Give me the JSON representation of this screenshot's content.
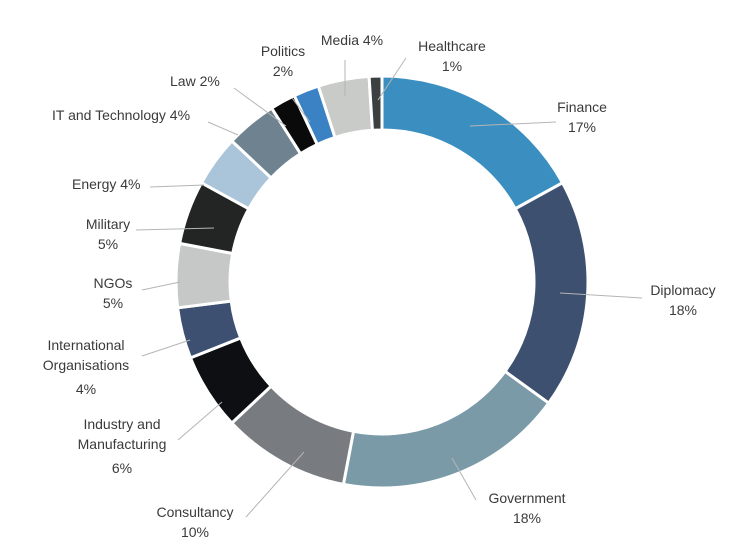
{
  "chart_data": {
    "type": "donut",
    "title": "",
    "slices": [
      {
        "name": "Finance",
        "value_label": "17%",
        "value": 17,
        "color": "#3a8fc0"
      },
      {
        "name": "Diplomacy",
        "value_label": "18%",
        "value": 18,
        "color": "#3d5070"
      },
      {
        "name": "Government",
        "value_label": "18%",
        "value": 18,
        "color": "#7a9aa8"
      },
      {
        "name": "Consultancy",
        "value_label": "10%",
        "value": 10,
        "color": "#787c80"
      },
      {
        "name": "Industry and Manufacturing",
        "value_label": "6%",
        "value": 6,
        "color": "#0d0f12"
      },
      {
        "name": "International Organisations",
        "value_label": "4%",
        "value": 4,
        "color": "#3e5072"
      },
      {
        "name": "NGOs",
        "value_label": "5%",
        "value": 5,
        "color": "#c5c8c6"
      },
      {
        "name": "Military",
        "value_label": "5%",
        "value": 5,
        "color": "#232525"
      },
      {
        "name": "Energy",
        "value_label": "4%",
        "value": 4,
        "color": "#aac4da"
      },
      {
        "name": "IT and Technology",
        "value_label": "4%",
        "value": 4,
        "color": "#6e8290"
      },
      {
        "name": "Law",
        "value_label": "2%",
        "value": 2,
        "color": "#0a0a0a"
      },
      {
        "name": "Politics",
        "value_label": "2%",
        "value": 2,
        "color": "#3a82c4"
      },
      {
        "name": "Media",
        "value_label": "4%",
        "value": 4,
        "color": "#c9cbc8"
      },
      {
        "name": "Healthcare",
        "value_label": "1%",
        "value": 1,
        "color": "#3d4042"
      }
    ],
    "labels": [
      {
        "lines": [
          "Finance",
          "17%"
        ]
      },
      {
        "lines": [
          "Diplomacy",
          "18%"
        ]
      },
      {
        "lines": [
          "Government",
          "18%"
        ]
      },
      {
        "lines": [
          "Consultancy",
          "10%"
        ]
      },
      {
        "lines": [
          "Industry and",
          "Manufacturing",
          "6%"
        ]
      },
      {
        "lines": [
          "International",
          "Organisations",
          "4%"
        ]
      },
      {
        "lines": [
          "NGOs",
          "5%"
        ]
      },
      {
        "lines": [
          "Military",
          "5%"
        ]
      },
      {
        "lines": [
          "Energy 4%"
        ]
      },
      {
        "lines": [
          "IT and Technology 4%"
        ]
      },
      {
        "lines": [
          "Law  2%"
        ]
      },
      {
        "lines": [
          "Politics",
          "2%"
        ]
      },
      {
        "lines": [
          "Media 4%"
        ]
      },
      {
        "lines": [
          "Healthcare",
          "1%"
        ]
      }
    ]
  }
}
